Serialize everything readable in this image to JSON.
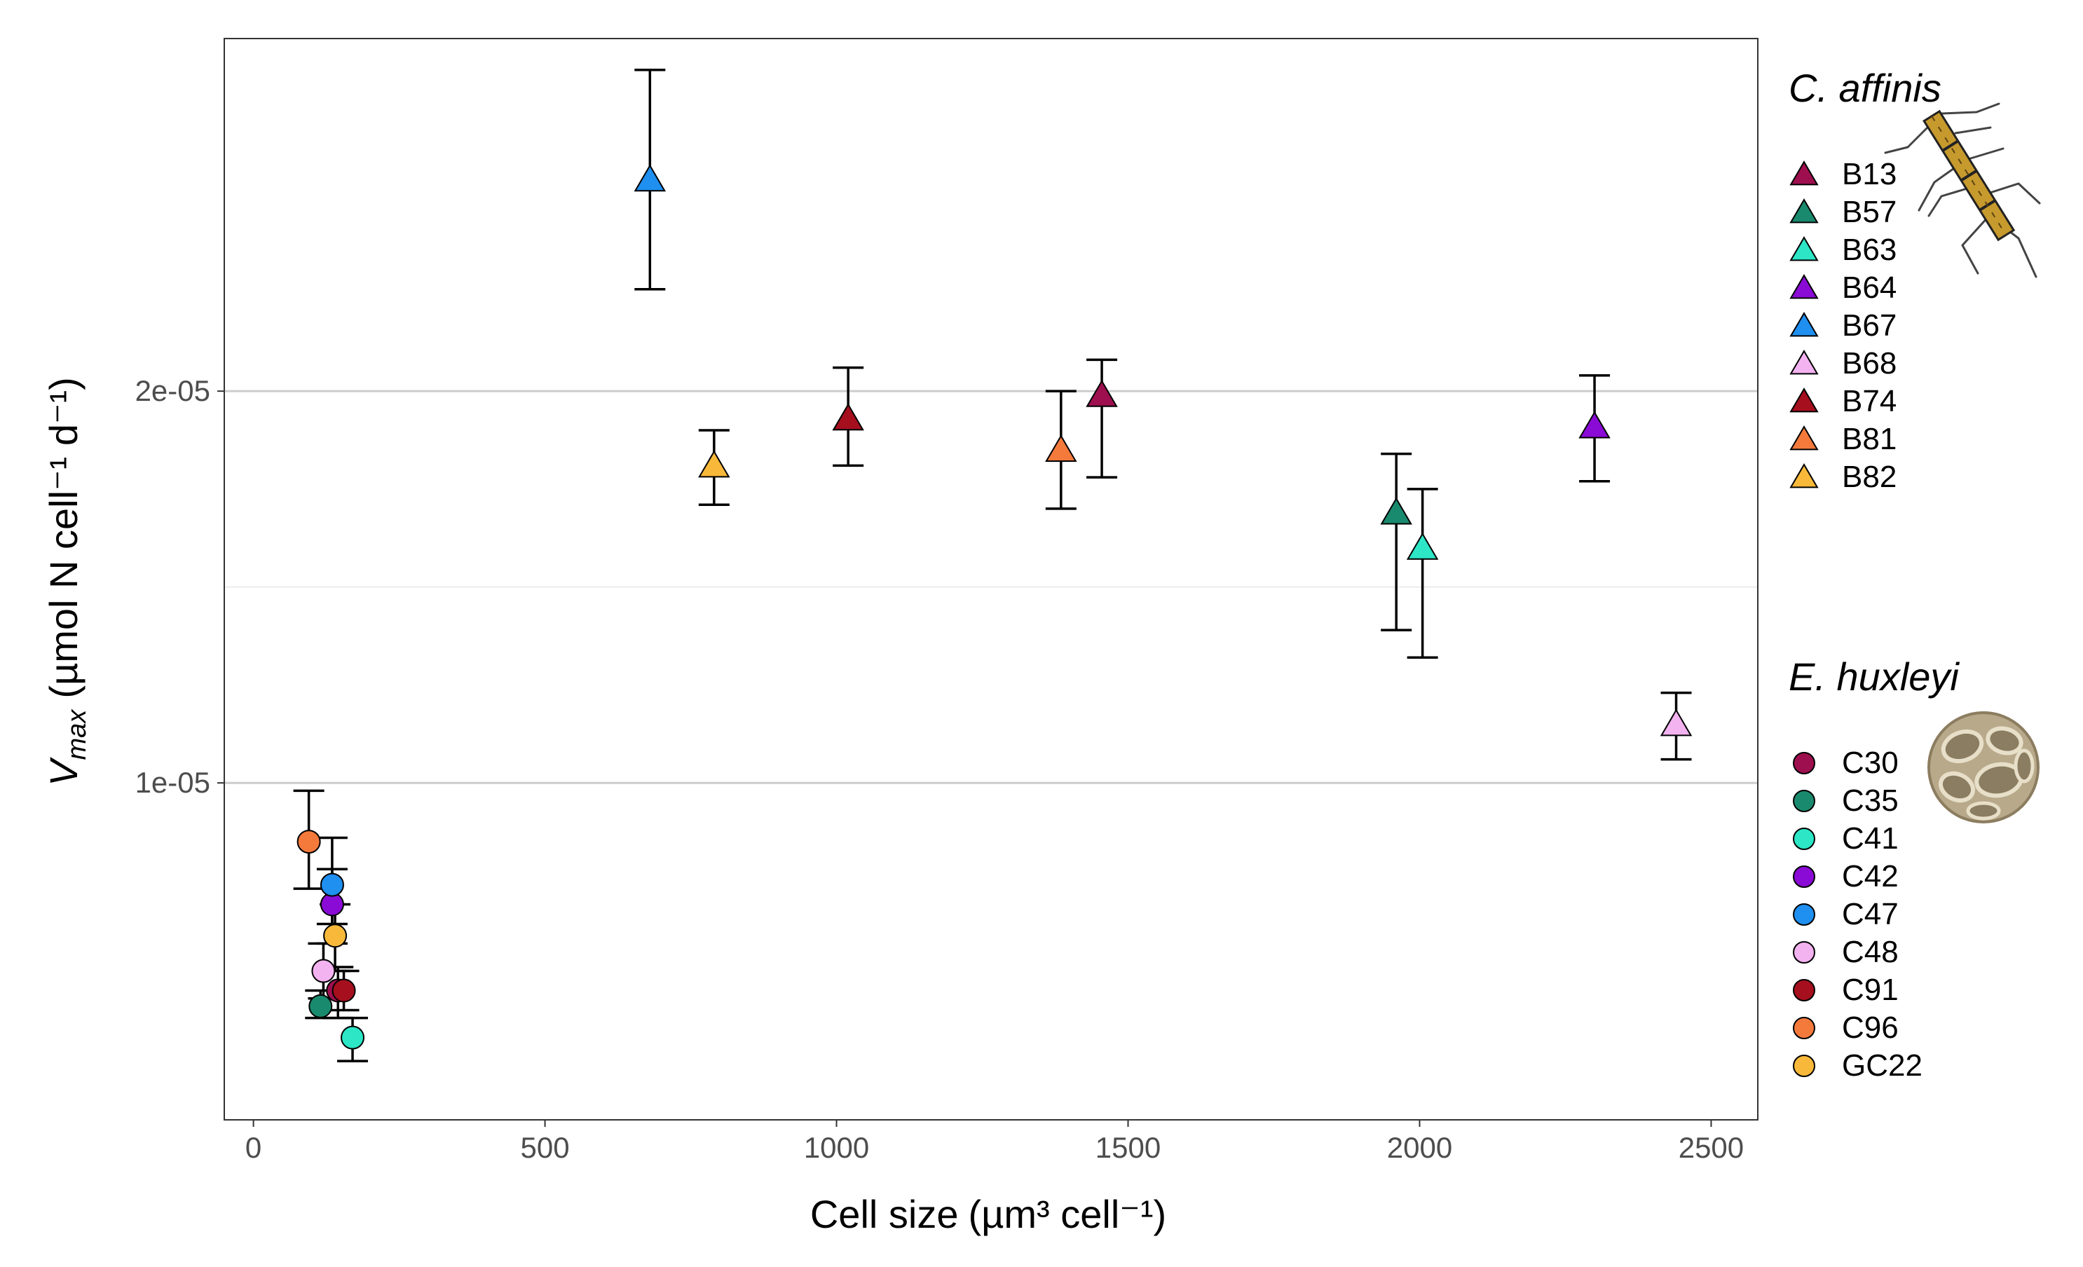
{
  "chart_data": {
    "type": "scatter",
    "xlabel": "Cell size",
    "xlabel_unit": "(µm³ cell⁻¹)",
    "ylabel": "V",
    "ylabel_sub": "max",
    "ylabel_unit": "(µmol N cell⁻¹ d⁻¹)",
    "xlim": [
      -50,
      2580
    ],
    "ylim": [
      1.4e-06,
      2.9e-05
    ],
    "x_ticks": [
      0,
      500,
      1000,
      1500,
      2000,
      2500
    ],
    "x_tick_labels": [
      "0",
      "500",
      "1000",
      "1500",
      "2000",
      "2500"
    ],
    "y_ticks": [
      1e-05,
      2e-05
    ],
    "y_tick_labels": [
      "1e-05",
      "2e-05"
    ],
    "y_minor_gridlines": [
      1.5e-05
    ],
    "grid": "horizontal",
    "legend_position": "right",
    "groups": [
      {
        "title": "C. affinis",
        "marker": "triangle",
        "series": [
          {
            "name": "B13",
            "color": "#9e0f4f",
            "x": 1455,
            "y": 1.99e-05,
            "ymin": 1.78e-05,
            "ymax": 2.08e-05
          },
          {
            "name": "B57",
            "color": "#1a8a6e",
            "x": 1960,
            "y": 1.69e-05,
            "ymin": 1.39e-05,
            "ymax": 1.84e-05
          },
          {
            "name": "B63",
            "color": "#2ce6c6",
            "x": 2005,
            "y": 1.6e-05,
            "ymin": 1.32e-05,
            "ymax": 1.75e-05
          },
          {
            "name": "B64",
            "color": "#8a0ad6",
            "x": 2300,
            "y": 1.91e-05,
            "ymin": 1.77e-05,
            "ymax": 2.04e-05
          },
          {
            "name": "B67",
            "color": "#1f8ff0",
            "x": 680,
            "y": 2.54e-05,
            "ymin": 2.26e-05,
            "ymax": 2.82e-05
          },
          {
            "name": "B68",
            "color": "#f3b2f0",
            "x": 2440,
            "y": 1.15e-05,
            "ymin": 1.06e-05,
            "ymax": 1.23e-05
          },
          {
            "name": "B74",
            "color": "#a50f1e",
            "x": 1020,
            "y": 1.93e-05,
            "ymin": 1.81e-05,
            "ymax": 2.06e-05
          },
          {
            "name": "B81",
            "color": "#f47a3c",
            "x": 1385,
            "y": 1.85e-05,
            "ymin": 1.7e-05,
            "ymax": 2e-05
          },
          {
            "name": "B82",
            "color": "#f8b93a",
            "x": 790,
            "y": 1.81e-05,
            "ymin": 1.71e-05,
            "ymax": 1.9e-05
          }
        ]
      },
      {
        "title": "E. huxleyi",
        "marker": "circle",
        "series": [
          {
            "name": "C30",
            "color": "#9e0f4f",
            "x": 145,
            "y": 4.7e-06,
            "ymin": 4e-06,
            "ymax": 5.3e-06
          },
          {
            "name": "C35",
            "color": "#1a8a6e",
            "x": 115,
            "y": 4.3e-06,
            "ymin": 4e-06,
            "ymax": 4.7e-06
          },
          {
            "name": "C41",
            "color": "#2ce6c6",
            "x": 170,
            "y": 3.5e-06,
            "ymin": 2.9e-06,
            "ymax": 4e-06
          },
          {
            "name": "C42",
            "color": "#8a0ad6",
            "x": 135,
            "y": 6.9e-06,
            "ymin": 5.9e-06,
            "ymax": 7.8e-06
          },
          {
            "name": "C47",
            "color": "#1f8ff0",
            "x": 135,
            "y": 7.4e-06,
            "ymin": 6.4e-06,
            "ymax": 8.6e-06
          },
          {
            "name": "C48",
            "color": "#f3b2f0",
            "x": 120,
            "y": 5.2e-06,
            "ymin": 4.5e-06,
            "ymax": 5.9e-06
          },
          {
            "name": "C91",
            "color": "#a50f1e",
            "x": 155,
            "y": 4.7e-06,
            "ymin": 4.2e-06,
            "ymax": 5.2e-06
          },
          {
            "name": "C96",
            "color": "#f47a3c",
            "x": 95,
            "y": 8.5e-06,
            "ymin": 7.3e-06,
            "ymax": 9.8e-06
          },
          {
            "name": "GC22",
            "color": "#f8b93a",
            "x": 140,
            "y": 6.1e-06,
            "ymin": 5.2e-06,
            "ymax": 6.9e-06
          }
        ]
      }
    ]
  },
  "icons": [
    "diatom-chain-icon",
    "coccolithophore-icon"
  ]
}
